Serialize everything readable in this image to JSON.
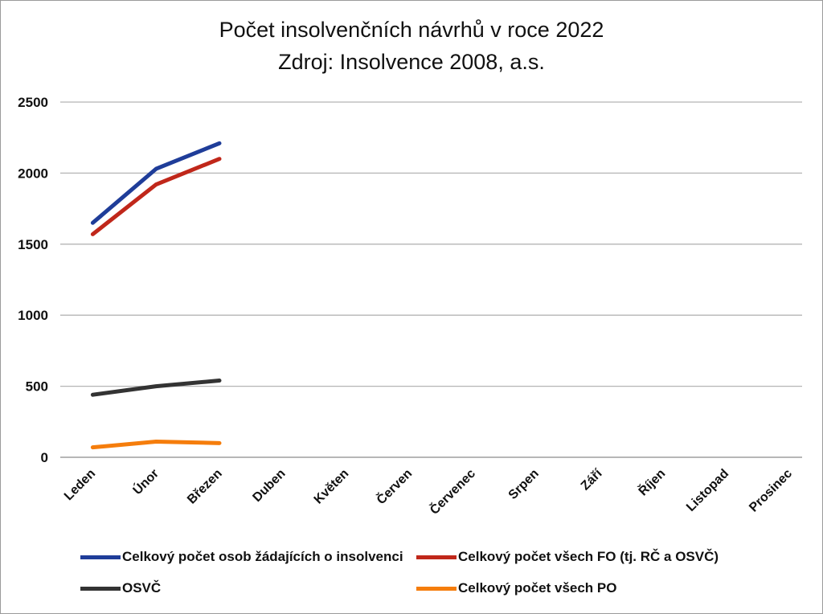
{
  "chart_data": {
    "type": "line",
    "title": "Počet insolvenčních návrhů v roce 2022",
    "subtitle": "Zdroj: Insolvence 2008, a.s.",
    "categories": [
      "Leden",
      "Únor",
      "Březen",
      "Duben",
      "Květen",
      "Červen",
      "Červenec",
      "Srpen",
      "Září",
      "Říjen",
      "Listopad",
      "Prosinec"
    ],
    "ylim": [
      0,
      2500
    ],
    "yticks": [
      "0",
      "500",
      "1000",
      "1500",
      "2000",
      "2500"
    ],
    "grid": true,
    "legend_position": "bottom",
    "series": [
      {
        "name": "Celkový počet osob žádajících o insolvenci",
        "color": "#1f3d99",
        "values": [
          1650,
          2030,
          2210,
          null,
          null,
          null,
          null,
          null,
          null,
          null,
          null,
          null
        ]
      },
      {
        "name": "Celkový počet všech FO (tj. RČ a OSVČ)",
        "color": "#c0271a",
        "values": [
          1570,
          1920,
          2100,
          null,
          null,
          null,
          null,
          null,
          null,
          null,
          null,
          null
        ]
      },
      {
        "name": "OSVČ",
        "color": "#333333",
        "values": [
          440,
          500,
          540,
          null,
          null,
          null,
          null,
          null,
          null,
          null,
          null,
          null
        ]
      },
      {
        "name": "Celkový počet všech PO",
        "color": "#f57d0c",
        "values": [
          70,
          110,
          100,
          null,
          null,
          null,
          null,
          null,
          null,
          null,
          null,
          null
        ]
      }
    ]
  }
}
